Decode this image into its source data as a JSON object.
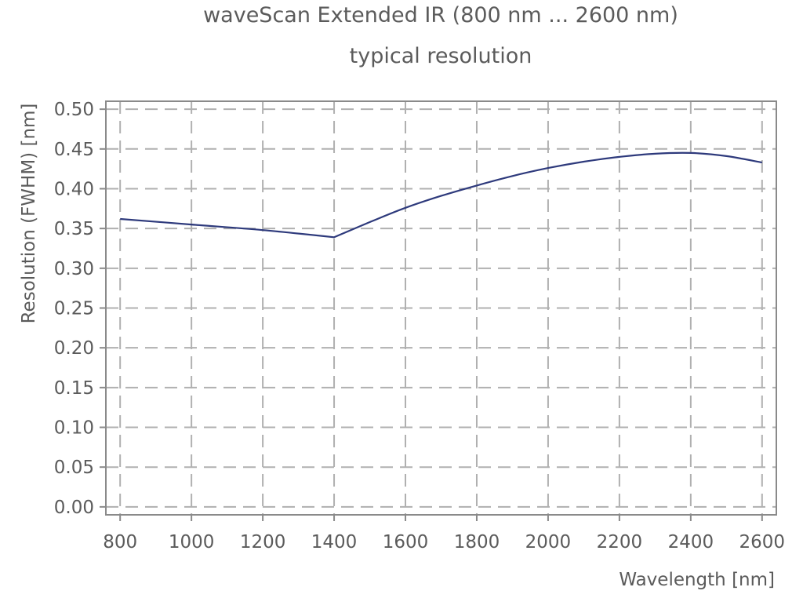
{
  "chart_data": {
    "type": "line",
    "title": "waveScan Extended IR (800 nm ... 2600 nm)",
    "subtitle": "typical resolution",
    "xlabel": "Wavelength [nm]",
    "ylabel": "Resolution (FWHM) [nm]",
    "xlim": [
      760,
      2640
    ],
    "ylim": [
      -0.01,
      0.51
    ],
    "xticks": [
      800,
      1000,
      1200,
      1400,
      1600,
      1800,
      2000,
      2200,
      2400,
      2600
    ],
    "xtick_labels": [
      "800",
      "1000",
      "1200",
      "1400",
      "1600",
      "1800",
      "2000",
      "2200",
      "2400",
      "2600"
    ],
    "yticks": [
      0,
      0.05,
      0.1,
      0.15,
      0.2,
      0.25,
      0.3,
      0.35,
      0.4,
      0.45,
      0.5
    ],
    "ytick_labels": [
      "0.00",
      "0.05",
      "0.10",
      "0.15",
      "0.20",
      "0.25",
      "0.30",
      "0.35",
      "0.40",
      "0.45",
      "0.50"
    ],
    "grid": true,
    "line_color": "#2e3a7c",
    "grid_color": "#b0b0b0",
    "frame_color": "#8a8a8a",
    "series": [
      {
        "x": [
          800,
          1000,
          1200,
          1400,
          1500,
          1600,
          1700,
          1800,
          1900,
          2000,
          2100,
          2200,
          2300,
          2400,
          2500,
          2600
        ],
        "y": [
          0.362,
          0.355,
          0.348,
          0.339,
          0.358,
          0.376,
          0.391,
          0.404,
          0.416,
          0.426,
          0.434,
          0.44,
          0.444,
          0.445,
          0.441,
          0.433
        ]
      }
    ]
  }
}
